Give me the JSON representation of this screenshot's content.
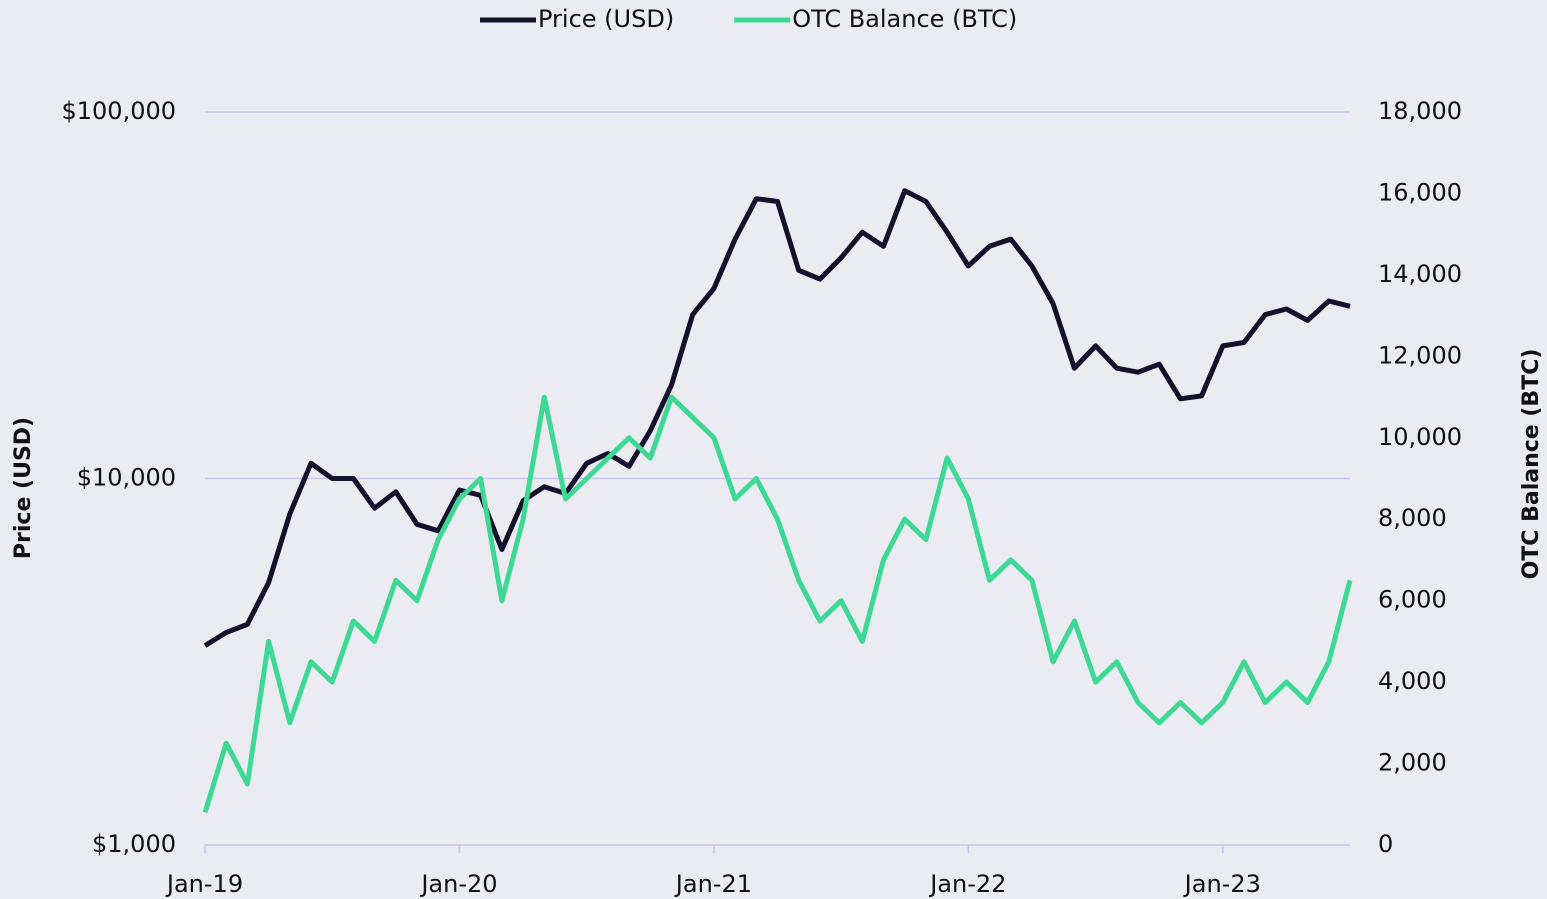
{
  "chart_data": {
    "type": "line",
    "categories": [
      "Jan-19",
      null,
      null,
      null,
      null,
      null,
      null,
      null,
      null,
      null,
      null,
      null,
      "Jan-20",
      null,
      null,
      null,
      null,
      null,
      null,
      null,
      null,
      null,
      null,
      null,
      "Jan-21",
      null,
      null,
      null,
      null,
      null,
      null,
      null,
      null,
      null,
      null,
      null,
      "Jan-22",
      null,
      null,
      null,
      null,
      null,
      null,
      null,
      null,
      null,
      null,
      null,
      "Jan-23",
      null,
      null,
      null,
      null,
      null,
      null
    ],
    "series": [
      {
        "name": "Price (USD)",
        "color": "#13112b",
        "axis": "y",
        "values": [
          3500,
          3800,
          4000,
          5200,
          8000,
          11000,
          10000,
          10000,
          8300,
          9200,
          7500,
          7200,
          9300,
          9000,
          6400,
          8700,
          9500,
          9100,
          11000,
          11700,
          10800,
          13500,
          18000,
          28000,
          33000,
          45000,
          58000,
          57000,
          37000,
          35000,
          40000,
          47000,
          43000,
          61000,
          57000,
          47000,
          38000,
          43000,
          45000,
          38000,
          30000,
          20000,
          23000,
          20000,
          19500,
          20500,
          16500,
          16800,
          23000,
          23500,
          28000,
          29000,
          27000,
          30500,
          29500
        ]
      },
      {
        "name": "OTC Balance (BTC)",
        "color": "#3dd994",
        "axis": "y2",
        "values": [
          800,
          2500,
          1500,
          5000,
          3000,
          4500,
          4000,
          5500,
          5000,
          6500,
          6000,
          7500,
          8500,
          9000,
          6000,
          8000,
          11000,
          8500,
          9000,
          9500,
          10000,
          9500,
          11000,
          10500,
          10000,
          8500,
          9000,
          8000,
          6500,
          5500,
          6000,
          5000,
          7000,
          8000,
          7500,
          9500,
          8500,
          6500,
          7000,
          6500,
          4500,
          5500,
          4000,
          4500,
          3500,
          3000,
          3500,
          3000,
          3500,
          4500,
          3500,
          4000,
          3500,
          4500,
          6500
        ]
      }
    ],
    "y_label": "Price (USD)",
    "y2_label": "OTC Balance (BTC)",
    "ylog": true,
    "ylim": [
      1000,
      100000
    ],
    "yticks": [
      {
        "value": 1000,
        "label": "$1,000"
      },
      {
        "value": 10000,
        "label": "$10,000"
      },
      {
        "value": 100000,
        "label": "$100,000"
      }
    ],
    "y2lim": [
      0,
      18000
    ],
    "y2ticks": [
      0,
      {
        "value": 2000,
        "label": "2,000"
      },
      {
        "value": 4000,
        "label": "4,000"
      },
      {
        "value": 6000,
        "label": "6,000"
      },
      {
        "value": 8000,
        "label": "8,000"
      },
      {
        "value": 10000,
        "label": "10,000"
      },
      {
        "value": 12000,
        "label": "12,000"
      },
      {
        "value": 14000,
        "label": "14,000"
      },
      {
        "value": 16000,
        "label": "16,000"
      },
      {
        "value": 18000,
        "label": "18,000"
      }
    ],
    "grid": true,
    "legend": "top"
  }
}
